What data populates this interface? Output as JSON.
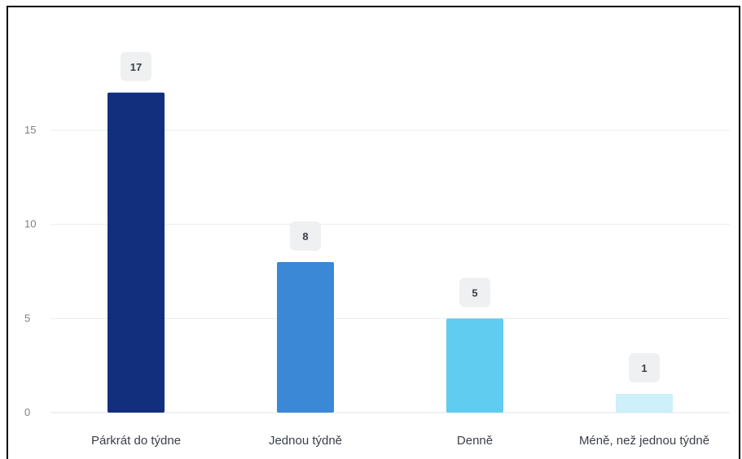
{
  "chart_data": {
    "type": "bar",
    "categories": [
      "Párkrát do týdne",
      "Jednou týdně",
      "Denně",
      "Méně, než jednou týdně"
    ],
    "values": [
      17,
      8,
      5,
      1
    ],
    "data_labels": [
      "17",
      "8",
      "5",
      "1"
    ],
    "y_ticks": [
      "0",
      "5",
      "10",
      "15"
    ],
    "ylim": [
      0,
      20
    ],
    "grid": true,
    "colors": [
      "#122f7d",
      "#3a88d6",
      "#60ccef",
      "#cdf0fa"
    ],
    "title": "",
    "xlabel": "",
    "ylabel": ""
  }
}
